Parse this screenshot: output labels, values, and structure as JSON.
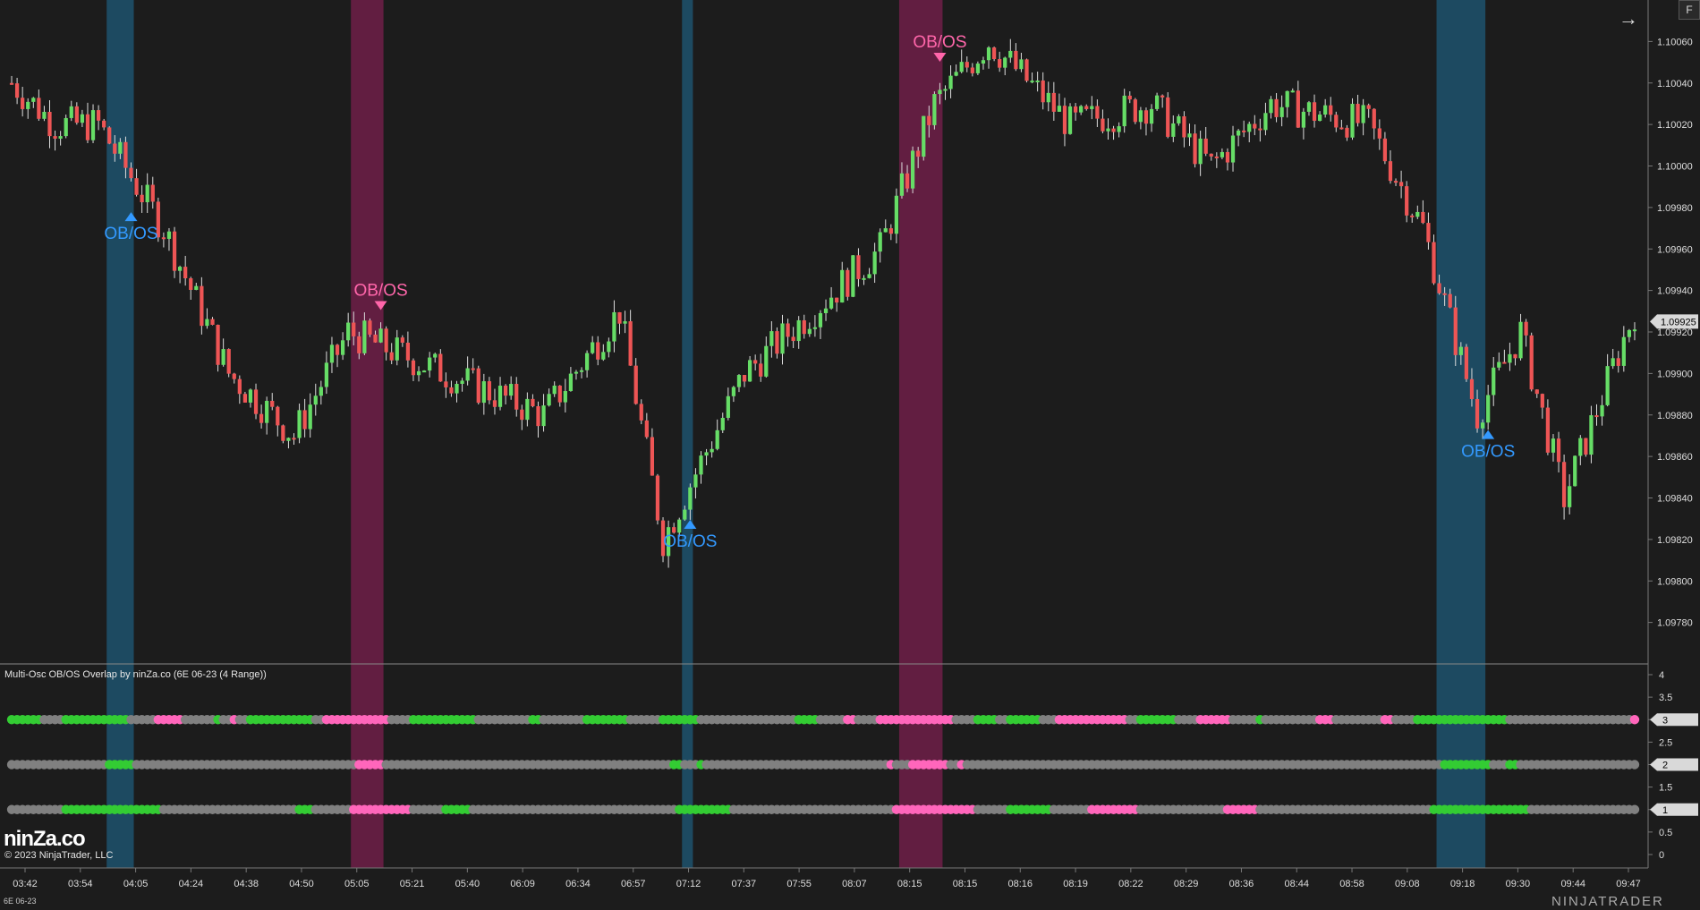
{
  "window": {
    "indicator_title": "Multi-Osc OB/OS Overlap by ninZa.co (6E 06-23 (4 Range))",
    "logo_text": "ninZa.co",
    "copyright": "© 2023 NinjaTrader, LLC",
    "instrument": "6E 06-23",
    "brand": "NINJATRADER",
    "f_button": "F",
    "arrow_icon": "arrow-right-icon"
  },
  "colors": {
    "background": "#1c1c1c",
    "bull_candle": "#66dd66",
    "bear_candle": "#ee5555",
    "blue_band": "#1e5a78",
    "pink_band": "#7a1f4e",
    "blue_text": "#3399ff",
    "pink_text": "#ff66aa",
    "dot_gray": "#808080",
    "dot_green": "#33cc33",
    "dot_pink": "#ff66bb"
  },
  "chart_data": [
    {
      "type": "candlestick",
      "title": "",
      "ylim": [
        1.0976,
        1.1008
      ],
      "y_ticks": [
        "1.09780",
        "1.09800",
        "1.09820",
        "1.09840",
        "1.09860",
        "1.09880",
        "1.09900",
        "1.09920",
        "1.09940",
        "1.09960",
        "1.09980",
        "1.10000",
        "1.10020",
        "1.10040",
        "1.10060"
      ],
      "current_price": "1.09925",
      "x_ticks": [
        "03:42",
        "03:54",
        "04:05",
        "04:24",
        "04:38",
        "04:50",
        "05:05",
        "05:21",
        "05:40",
        "06:09",
        "06:34",
        "06:57",
        "07:12",
        "07:37",
        "07:55",
        "08:07",
        "08:15",
        "08:15",
        "08:16",
        "08:19",
        "08:22",
        "08:29",
        "08:36",
        "08:44",
        "08:58",
        "09:08",
        "09:18",
        "09:30",
        "09:44",
        "09:47"
      ],
      "bar_count": 300,
      "close_path_points": [
        [
          0,
          1.1004
        ],
        [
          8,
          1.1002
        ],
        [
          16,
          1.1002
        ],
        [
          28,
          1.0997
        ],
        [
          40,
          1.099
        ],
        [
          52,
          1.0987
        ],
        [
          62,
          1.0992
        ],
        [
          80,
          1.099
        ],
        [
          98,
          1.0988
        ],
        [
          112,
          1.0993
        ],
        [
          120,
          1.0982
        ],
        [
          135,
          1.099
        ],
        [
          160,
          1.0996
        ],
        [
          170,
          1.1003
        ],
        [
          180,
          1.1006
        ],
        [
          195,
          1.1002
        ],
        [
          210,
          1.1003
        ],
        [
          221,
          1.1
        ],
        [
          232,
          1.1003
        ],
        [
          250,
          1.1002
        ],
        [
          260,
          1.0997
        ],
        [
          270,
          1.0988
        ],
        [
          278,
          1.0992
        ],
        [
          286,
          1.0984
        ],
        [
          296,
          1.0991
        ],
        [
          299,
          1.0993
        ]
      ],
      "annotations": [
        {
          "label": "OB/OS",
          "marker": "up",
          "color": "blue",
          "bar": 22
        },
        {
          "label": "OB/OS",
          "marker": "down",
          "color": "pink",
          "bar": 68
        },
        {
          "label": "OB/OS",
          "marker": "up",
          "color": "blue",
          "bar": 125
        },
        {
          "label": "OB/OS",
          "marker": "down",
          "color": "pink",
          "bar": 171
        },
        {
          "label": "OB/OS",
          "marker": "up",
          "color": "blue",
          "bar": 272
        }
      ],
      "highlight_bands": [
        {
          "color": "blue",
          "start_bar": 18,
          "end_bar": 22
        },
        {
          "color": "pink",
          "start_bar": 63,
          "end_bar": 68
        },
        {
          "color": "blue",
          "start_bar": 124,
          "end_bar": 125
        },
        {
          "color": "pink",
          "start_bar": 164,
          "end_bar": 171
        },
        {
          "color": "blue",
          "start_bar": 263,
          "end_bar": 271
        }
      ]
    },
    {
      "type": "dot-rows",
      "title": "Multi-Osc OB/OS Overlap by ninZa.co (6E 06-23 (4 Range))",
      "ylim": [
        0,
        4
      ],
      "y_ticks": [
        "0",
        "0.5",
        "1",
        "1.5",
        "2",
        "2.5",
        "3",
        "3.5",
        "4"
      ],
      "current_labels": [
        "3",
        "2",
        "1"
      ],
      "rows": [
        {
          "level": 3,
          "segments": [
            [
              "green",
              0,
              6
            ],
            [
              "gray",
              6,
              10
            ],
            [
              "green",
              10,
              22
            ],
            [
              "gray",
              22,
              27
            ],
            [
              "pink",
              27,
              32
            ],
            [
              "gray",
              32,
              38
            ],
            [
              "green",
              38,
              39
            ],
            [
              "gray",
              39,
              41
            ],
            [
              "pink",
              41,
              42
            ],
            [
              "gray",
              42,
              44
            ],
            [
              "green",
              44,
              56
            ],
            [
              "gray",
              56,
              58
            ],
            [
              "pink",
              58,
              70
            ],
            [
              "gray",
              70,
              74
            ],
            [
              "green",
              74,
              86
            ],
            [
              "gray",
              86,
              96
            ],
            [
              "green",
              96,
              98
            ],
            [
              "gray",
              98,
              106
            ],
            [
              "green",
              106,
              114
            ],
            [
              "gray",
              114,
              120
            ],
            [
              "green",
              120,
              127
            ],
            [
              "gray",
              127,
              145
            ],
            [
              "green",
              145,
              149
            ],
            [
              "gray",
              149,
              154
            ],
            [
              "pink",
              154,
              156
            ],
            [
              "gray",
              156,
              160
            ],
            [
              "pink",
              160,
              174
            ],
            [
              "gray",
              174,
              178
            ],
            [
              "green",
              178,
              182
            ],
            [
              "gray",
              182,
              184
            ],
            [
              "green",
              184,
              190
            ],
            [
              "gray",
              190,
              193
            ],
            [
              "pink",
              193,
              206
            ],
            [
              "gray",
              206,
              208
            ],
            [
              "green",
              208,
              215
            ],
            [
              "gray",
              215,
              219
            ],
            [
              "pink",
              219,
              225
            ],
            [
              "gray",
              225,
              230
            ],
            [
              "green",
              230,
              231
            ],
            [
              "gray",
              231,
              241
            ],
            [
              "pink",
              241,
              244
            ],
            [
              "gray",
              244,
              253
            ],
            [
              "pink",
              253,
              255
            ],
            [
              "gray",
              255,
              259
            ],
            [
              "green",
              259,
              276
            ],
            [
              "gray",
              276,
              299
            ],
            [
              "pink",
              299,
              300
            ]
          ]
        },
        {
          "level": 2,
          "segments": [
            [
              "gray",
              0,
              18
            ],
            [
              "green",
              18,
              23
            ],
            [
              "gray",
              23,
              64
            ],
            [
              "pink",
              64,
              69
            ],
            [
              "gray",
              69,
              122
            ],
            [
              "green",
              122,
              124
            ],
            [
              "gray",
              124,
              127
            ],
            [
              "green",
              127,
              128
            ],
            [
              "gray",
              128,
              162
            ],
            [
              "pink",
              162,
              163
            ],
            [
              "gray",
              163,
              166
            ],
            [
              "pink",
              166,
              173
            ],
            [
              "gray",
              173,
              175
            ],
            [
              "pink",
              175,
              176
            ],
            [
              "gray",
              176,
              264
            ],
            [
              "green",
              264,
              273
            ],
            [
              "gray",
              273,
              276
            ],
            [
              "green",
              276,
              278
            ],
            [
              "gray",
              278,
              300
            ]
          ]
        },
        {
          "level": 1,
          "segments": [
            [
              "gray",
              0,
              10
            ],
            [
              "green",
              10,
              28
            ],
            [
              "gray",
              28,
              53
            ],
            [
              "green",
              53,
              56
            ],
            [
              "gray",
              56,
              63
            ],
            [
              "pink",
              63,
              74
            ],
            [
              "gray",
              74,
              80
            ],
            [
              "green",
              80,
              85
            ],
            [
              "gray",
              85,
              123
            ],
            [
              "green",
              123,
              133
            ],
            [
              "gray",
              133,
              163
            ],
            [
              "pink",
              163,
              178
            ],
            [
              "gray",
              178,
              184
            ],
            [
              "green",
              184,
              192
            ],
            [
              "gray",
              192,
              199
            ],
            [
              "pink",
              199,
              208
            ],
            [
              "gray",
              208,
              224
            ],
            [
              "pink",
              224,
              230
            ],
            [
              "gray",
              230,
              262
            ],
            [
              "green",
              262,
              280
            ],
            [
              "gray",
              280,
              300
            ]
          ]
        }
      ]
    }
  ]
}
